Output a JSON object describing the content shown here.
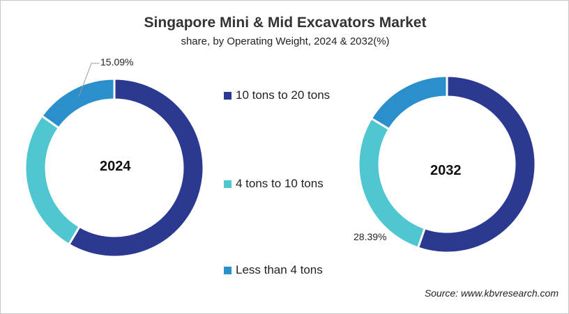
{
  "chart_data": {
    "type": "donut",
    "title": "Singapore  Mini & Mid Excavators Market",
    "subtitle": "share, by Operating Weight, 2024 & 2032(%)",
    "categories": [
      "10 tons to 20 tons",
      "4 tons to 10 tons",
      "Less than 4 tons"
    ],
    "colors": [
      "#2B3990",
      "#4FC6D0",
      "#2A8FCB"
    ],
    "legend_position": "center",
    "charts": [
      {
        "label": "2024",
        "values": [
          58.5,
          26.4,
          15.09
        ],
        "data_label": "15.09%"
      },
      {
        "label": "2032",
        "values": [
          55.3,
          28.39,
          16.3
        ],
        "data_label": "28.39%"
      }
    ]
  },
  "source": "Source: www.kbvresearch.com"
}
